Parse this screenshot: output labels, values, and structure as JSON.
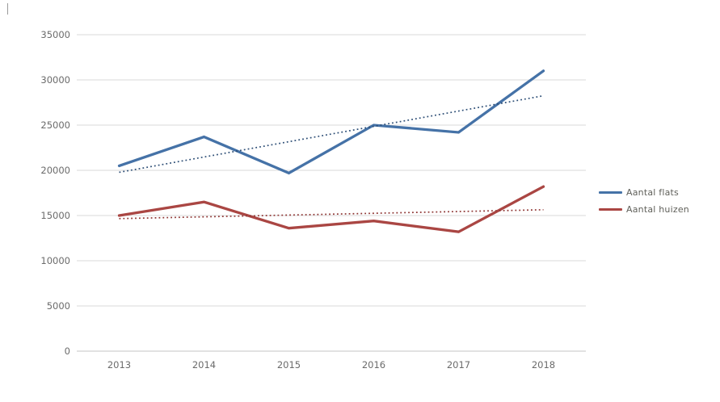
{
  "page": {
    "background": "#ffffff"
  },
  "chart_data": {
    "type": "line",
    "title": "",
    "xlabel": "",
    "ylabel": "",
    "categories": [
      "2013",
      "2014",
      "2015",
      "2016",
      "2017",
      "2018"
    ],
    "series": [
      {
        "name": "Aantal flats",
        "values": [
          20500,
          23700,
          19700,
          25000,
          24200,
          31000
        ],
        "color": "#4572a7",
        "trendline": {
          "style": "dotted",
          "start": 19780,
          "end": 28250,
          "color": "#2c4d75"
        }
      },
      {
        "name": "Aantal huizen",
        "values": [
          15000,
          16500,
          13600,
          14400,
          13200,
          18200
        ],
        "color": "#aa4643",
        "trendline": {
          "style": "dotted",
          "start": 14660,
          "end": 15640,
          "color": "#8e3432"
        }
      }
    ],
    "ylim": [
      0,
      35000
    ],
    "ytick_step": 5000,
    "yticks": [
      "0",
      "5000",
      "10000",
      "15000",
      "20000",
      "25000",
      "30000",
      "35000"
    ],
    "grid": true,
    "gridline_color": "#d9d9d9",
    "axis_line_color": "#c6c6c6",
    "label_color": "#6b6b6b",
    "legend_position": "right"
  }
}
